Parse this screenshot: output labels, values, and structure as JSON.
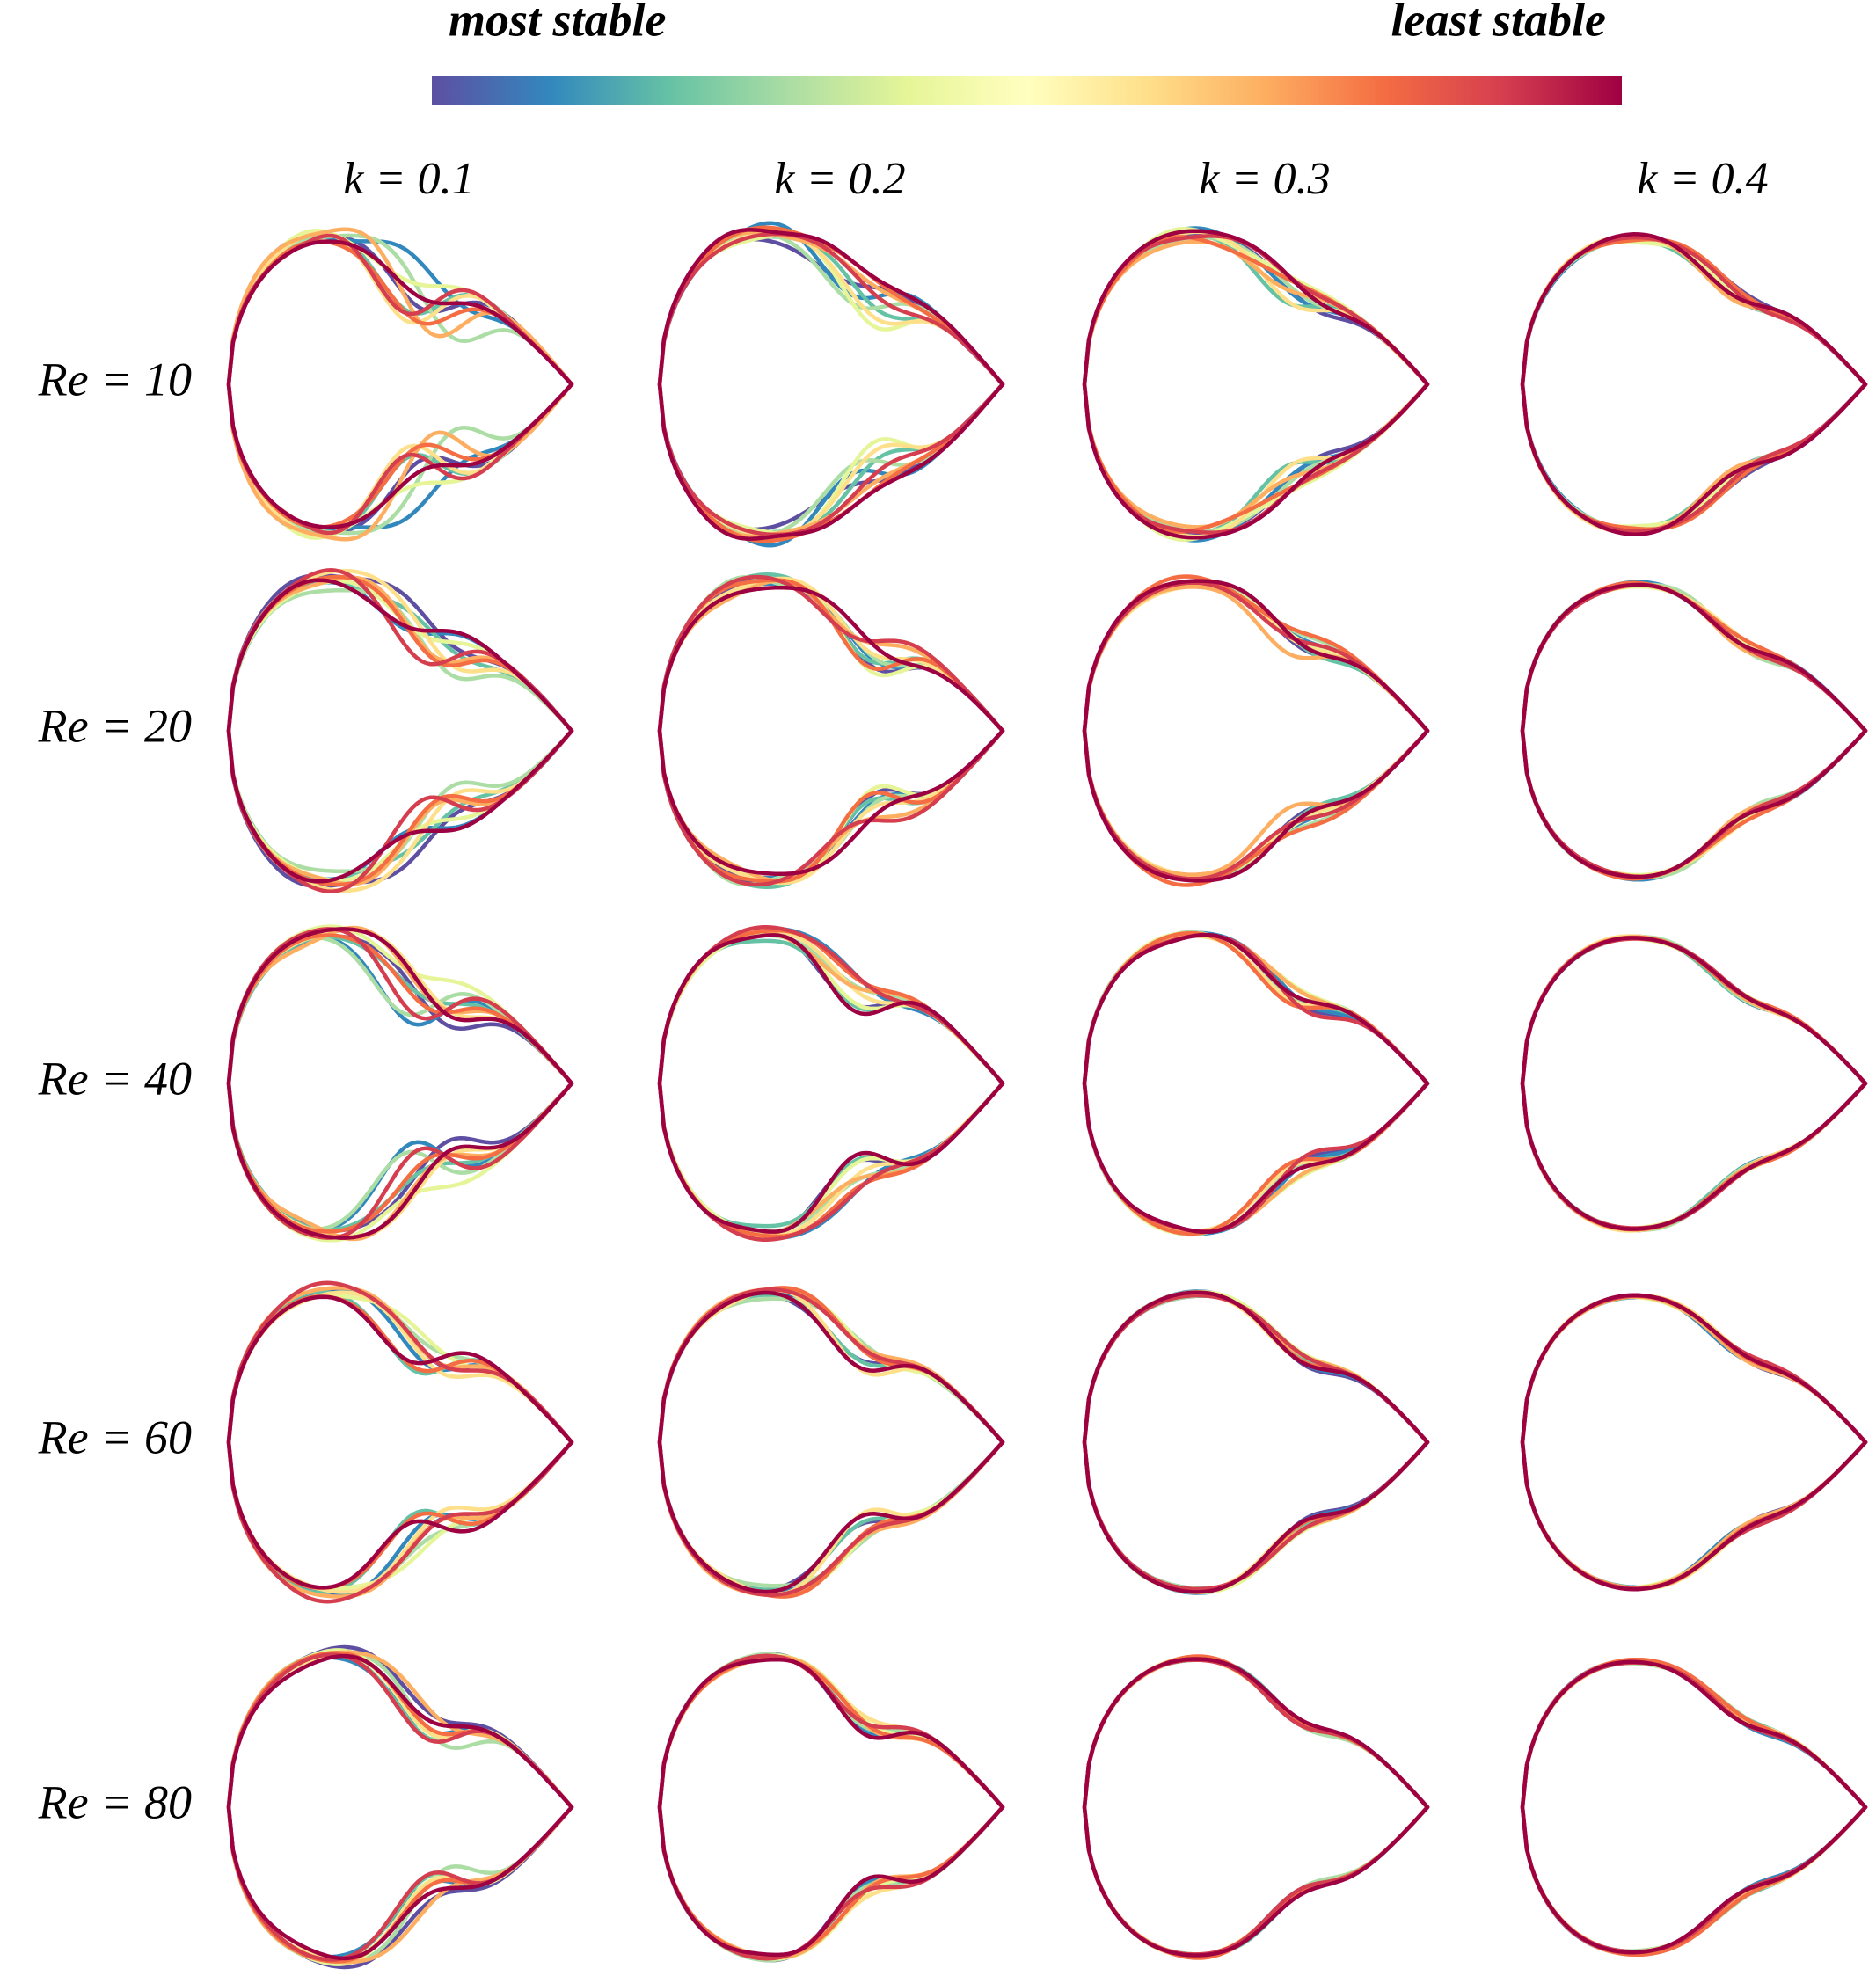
{
  "colorbar": {
    "low_label": "most stable",
    "high_label": "least stable"
  },
  "columns": [
    "k = 0.1",
    "k = 0.2",
    "k = 0.3",
    "k = 0.4"
  ],
  "rows": [
    "Re = 10",
    "Re = 20",
    "Re = 40",
    "Re = 60",
    "Re = 80"
  ]
}
